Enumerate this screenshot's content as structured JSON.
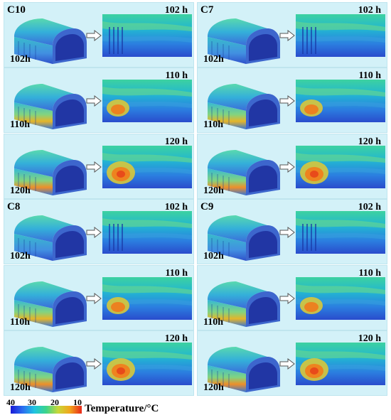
{
  "panels": [
    {
      "block": "C10",
      "rows": [
        {
          "left": "102h",
          "right": "102 h",
          "hot": 0
        },
        {
          "left": "110h",
          "right": "110 h",
          "hot": 1
        },
        {
          "left": "120h",
          "right": "120 h",
          "hot": 2
        }
      ]
    },
    {
      "block": "C7",
      "rows": [
        {
          "left": "102h",
          "right": "102 h",
          "hot": 0
        },
        {
          "left": "110h",
          "right": "110 h",
          "hot": 1
        },
        {
          "left": "120h",
          "right": "120 h",
          "hot": 2
        }
      ]
    },
    {
      "block": "C8",
      "rows": [
        {
          "left": "102h",
          "right": "102 h",
          "hot": 0
        },
        {
          "left": "110h",
          "right": "110 h",
          "hot": 1
        },
        {
          "left": "120h",
          "right": "120 h",
          "hot": 2
        }
      ]
    },
    {
      "block": "C9",
      "rows": [
        {
          "left": "102h",
          "right": "102 h",
          "hot": 0
        },
        {
          "left": "110h",
          "right": "110 h",
          "hot": 1
        },
        {
          "left": "120h",
          "right": "120 h",
          "hot": 2
        }
      ]
    }
  ],
  "legend": {
    "ticks": [
      "40",
      "30",
      "20",
      "10"
    ],
    "title": "Temperature/°C",
    "colors": [
      "#1a1ad6",
      "#2a6cf0",
      "#1fc4e0",
      "#3cd48a",
      "#c8d838",
      "#f2a51c",
      "#e8281a"
    ]
  }
}
